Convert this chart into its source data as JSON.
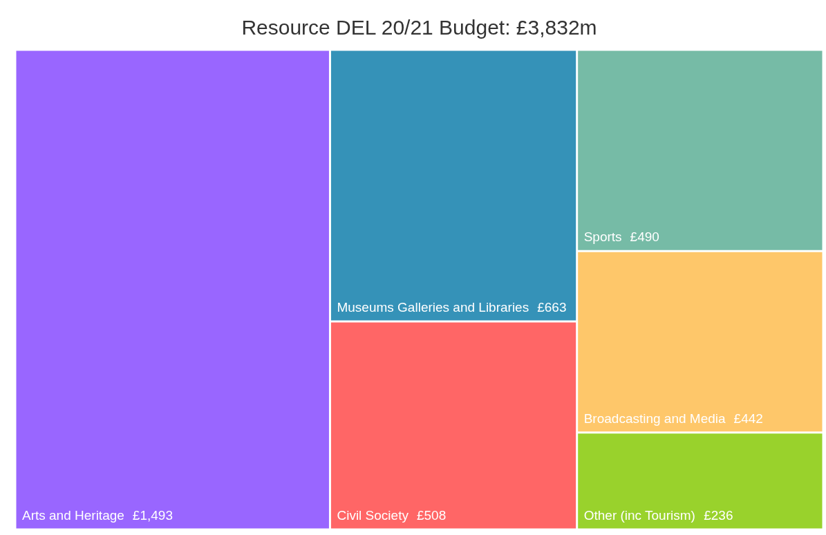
{
  "chart_data": {
    "type": "other",
    "title": "Resource DEL 20/21 Budget: £3,832m",
    "categories": [
      "Arts and Heritage",
      "Museums Galleries and Libraries",
      "Civil Society",
      "Sports",
      "Broadcasting and Media",
      "Other (inc Tourism)"
    ],
    "values": [
      1493,
      663,
      508,
      490,
      442,
      236
    ],
    "value_labels": [
      "£1,493",
      "£663",
      "£508",
      "£490",
      "£442",
      "£236"
    ],
    "colors": [
      "#9966ff",
      "#3592b8",
      "#ff6666",
      "#76bba6",
      "#fec76a",
      "#99d22c"
    ]
  }
}
